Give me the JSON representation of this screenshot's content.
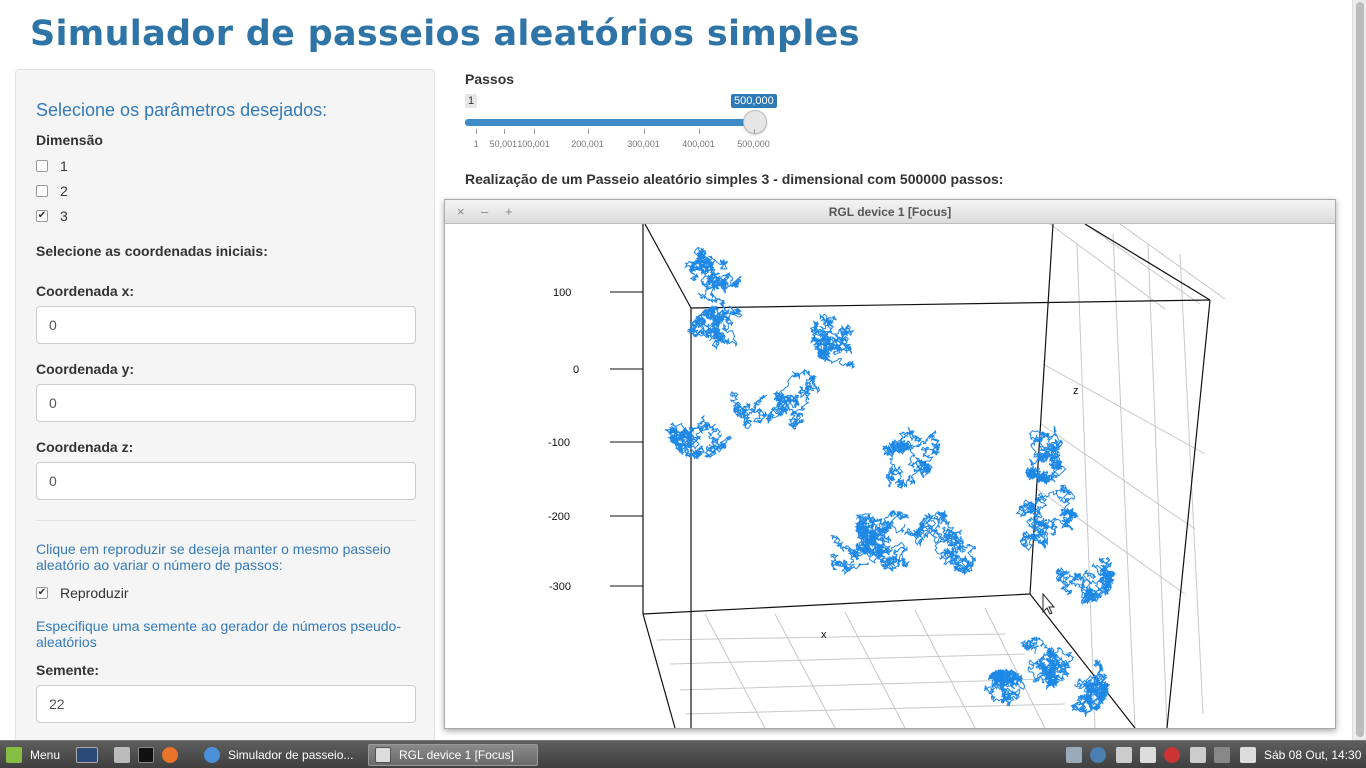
{
  "app": {
    "title": "Simulador de passeios aleatórios simples"
  },
  "sidebar": {
    "heading": "Selecione os parâmetros desejados:",
    "dimension_label": "Dimensão",
    "dimension_options": [
      {
        "label": "1",
        "checked": false
      },
      {
        "label": "2",
        "checked": false
      },
      {
        "label": "3",
        "checked": true
      }
    ],
    "coords_heading": "Selecione as coordenadas iniciais:",
    "coord_x_label": "Coordenada x:",
    "coord_x_value": "0",
    "coord_y_label": "Coordenada y:",
    "coord_y_value": "0",
    "coord_z_label": "Coordenada z:",
    "coord_z_value": "0",
    "reproduce_help": "Clique em reproduzir se deseja manter o mesmo passeio aleatório ao variar o número de passos:",
    "reproduce_label": "Reproduzir",
    "reproduce_checked": true,
    "seed_help": "Especifique uma semente ao gerador de números pseudo-aleatórios",
    "seed_label": "Semente:",
    "seed_value": "22"
  },
  "slider": {
    "label": "Passos",
    "min_badge": "1",
    "max_badge": "500,000",
    "value_fraction": 1.0,
    "tick_labels": [
      "1",
      "50,001",
      "100,001",
      "200,001",
      "300,001",
      "400,001",
      "500,000"
    ]
  },
  "description": "Realização de um Passeio aleatório simples 3 - dimensional com 500000 passos:",
  "rgl_window": {
    "title": "RGL device 1 [Focus]",
    "close_glyph": "×",
    "minimize_glyph": "–",
    "maximize_glyph": "+",
    "y_tick_labels": [
      "100",
      "0",
      "-100",
      "-200",
      "-300"
    ],
    "axis_x_label": "x",
    "axis_z_label": "z",
    "walk_color": "#1e88e5"
  },
  "taskbar": {
    "menu_label": "Menu",
    "windows": [
      {
        "label": "Simulador de passeio...",
        "active": false
      },
      {
        "label": "RGL device 1 [Focus]",
        "active": true
      }
    ],
    "clock": "Sáb 08 Out, 14:30"
  }
}
